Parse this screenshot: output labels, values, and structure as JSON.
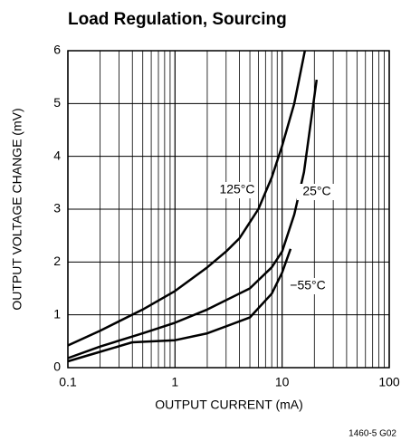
{
  "chart_data": {
    "type": "line",
    "title": "Load Regulation, Sourcing",
    "x_label": "OUTPUT CURRENT (mA)",
    "y_label": "OUTPUT VOLTAGE CHANGE (mV)",
    "figure_id": "1460-5 G02",
    "x_scale": "log",
    "xlim": [
      0.1,
      100
    ],
    "ylim": [
      0,
      6
    ],
    "xticks": [
      0.1,
      1,
      10,
      100
    ],
    "yticks": [
      0,
      1,
      2,
      3,
      4,
      5,
      6
    ],
    "grid": true,
    "minor_grid": true,
    "series": [
      {
        "name": "125°C",
        "color": "#000000",
        "x": [
          0.1,
          0.2,
          0.5,
          1,
          2,
          3,
          4,
          6,
          8,
          10,
          13,
          16.3
        ],
        "values": [
          0.42,
          0.7,
          1.1,
          1.45,
          1.9,
          2.2,
          2.45,
          3.0,
          3.6,
          4.2,
          5.0,
          6.0
        ]
      },
      {
        "name": "25°C",
        "color": "#000000",
        "x": [
          0.1,
          0.2,
          0.5,
          1,
          2,
          5,
          8,
          10,
          13,
          16,
          21
        ],
        "values": [
          0.18,
          0.4,
          0.65,
          0.85,
          1.1,
          1.5,
          1.9,
          2.2,
          2.9,
          3.7,
          5.45
        ]
      },
      {
        "name": "−55°C",
        "color": "#000000",
        "x": [
          0.1,
          0.2,
          0.4,
          1,
          2,
          5,
          8,
          10,
          12
        ],
        "values": [
          0.12,
          0.3,
          0.48,
          0.52,
          0.65,
          0.95,
          1.4,
          1.8,
          2.25
        ]
      }
    ]
  }
}
